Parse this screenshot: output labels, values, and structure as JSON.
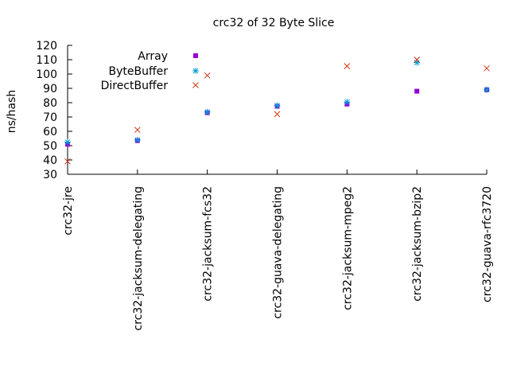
{
  "chart_data": {
    "type": "scatter",
    "title": "crc32 of 32 Byte Slice",
    "xlabel": "",
    "ylabel": "ns/hash",
    "categories": [
      "crc32-jre",
      "crc32-jacksum-delegating",
      "crc32-jacksum-fcs32",
      "crc32-guava-delegating",
      "crc32-jacksum-mpeg2",
      "crc32-jacksum-bzip2",
      "crc32-guava-rfc3720"
    ],
    "ylim": [
      30,
      120
    ],
    "yticks": [
      30,
      40,
      50,
      60,
      70,
      80,
      90,
      100,
      110,
      120
    ],
    "grid": false,
    "legend_position": "top-left",
    "series": [
      {
        "name": "Array",
        "marker": "filled-square",
        "color": "#9400D3",
        "values": [
          51,
          53.5,
          73,
          77.5,
          79,
          88,
          89
        ]
      },
      {
        "name": "ByteBuffer",
        "marker": "asterisk",
        "color": "#009ED7",
        "values": [
          52.5,
          54,
          73.5,
          78,
          80.5,
          108,
          89
        ]
      },
      {
        "name": "DirectBuffer",
        "marker": "x",
        "color": "#CC3311",
        "values": [
          39,
          61,
          99,
          72,
          105.5,
          110,
          104
        ]
      }
    ]
  }
}
